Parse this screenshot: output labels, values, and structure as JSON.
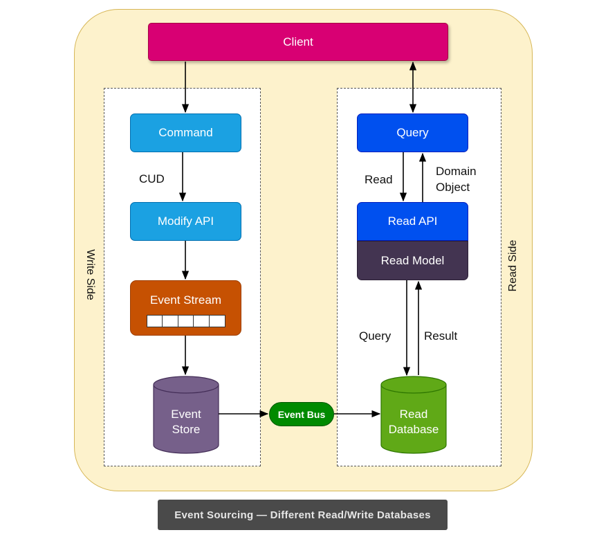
{
  "title": "Event Sourcing — Different Read/Write Databases",
  "client": "Client",
  "write_side": {
    "label": "Write Side",
    "command": "Command",
    "cud": "CUD",
    "modify_api": "Modify API",
    "event_stream": "Event Stream",
    "event_store": [
      "Event",
      "Store"
    ]
  },
  "read_side": {
    "label": "Read Side",
    "query": "Query",
    "read": "Read",
    "domain_object": [
      "Domain",
      "Object"
    ],
    "read_api": "Read API",
    "read_model": "Read Model",
    "query_label": "Query",
    "result_label": "Result",
    "read_database": [
      "Read",
      "Database"
    ]
  },
  "event_bus": "Event Bus",
  "colors": {
    "client": "#d80073",
    "write_box": "#1ba1e2",
    "event_stream": "#c65102",
    "event_store": "#76608a",
    "read_box": "#0050ef",
    "read_model": "#433451",
    "read_database": "#60a917",
    "event_bus": "#008a00",
    "outer": "#fdf2cc"
  }
}
